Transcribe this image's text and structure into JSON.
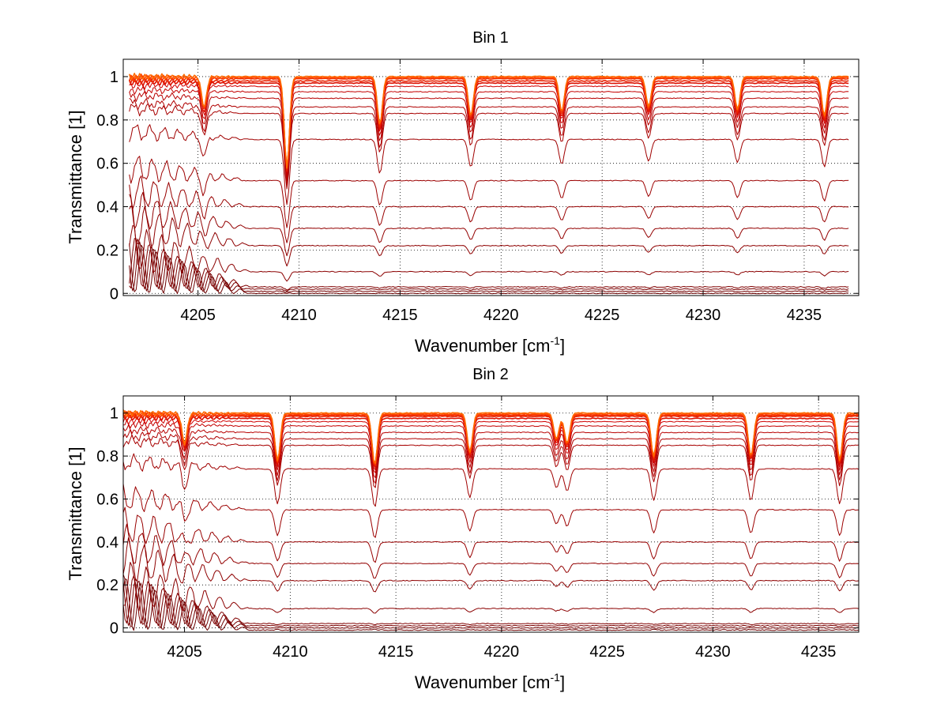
{
  "chart_data": [
    {
      "type": "line",
      "title": "Bin 1",
      "xlabel": "Wavenumber [cm",
      "xlabel_sup": "-1",
      "xlabel_end": "]",
      "ylabel": "Transmittance [1]",
      "xlim": [
        4201.3,
        4237.7
      ],
      "ylim": [
        -0.01,
        1.08
      ],
      "xticks": [
        4205,
        4210,
        4215,
        4220,
        4225,
        4230,
        4235
      ],
      "yticks": [
        0,
        0.2,
        0.4,
        0.6,
        0.8,
        1
      ],
      "ytick_labels": [
        "0",
        "0.2",
        "0.4",
        "0.6",
        "0.8",
        "1"
      ],
      "grid": true,
      "x_start": 4201.6,
      "x_end": 4237.2,
      "absorption_lines": [
        {
          "x": 4205.3,
          "rel_depth": 0.14
        },
        {
          "x": 4209.4,
          "rel_depth": 0.42
        },
        {
          "x": 4214.0,
          "rel_depth": 0.22
        },
        {
          "x": 4218.5,
          "rel_depth": 0.18
        },
        {
          "x": 4223.0,
          "rel_depth": 0.16
        },
        {
          "x": 4227.3,
          "rel_depth": 0.14
        },
        {
          "x": 4231.7,
          "rel_depth": 0.15
        },
        {
          "x": 4236.0,
          "rel_depth": 0.18
        }
      ],
      "series_baselines": [
        0.0,
        0.01,
        0.02,
        0.03,
        0.1,
        0.22,
        0.3,
        0.4,
        0.52,
        0.71,
        0.83,
        0.86,
        0.9,
        0.93,
        0.955,
        0.97,
        0.98,
        0.99,
        0.995,
        1.0
      ],
      "series_colors": [
        "#6b0000",
        "#720000",
        "#7a0000",
        "#800000",
        "#8b0000",
        "#8e0000",
        "#930000",
        "#980000",
        "#9c0000",
        "#a00000",
        "#a80000",
        "#b00000",
        "#b80000",
        "#c40000",
        "#d00000",
        "#dc1000",
        "#e82000",
        "#f03000",
        "#ff4000",
        "#ff6a00"
      ]
    },
    {
      "type": "line",
      "title": "Bin 2",
      "xlabel": "Wavenumber [cm",
      "xlabel_sup": "-1",
      "xlabel_end": "]",
      "ylabel": "Transmittance [1]",
      "xlim": [
        4202.1,
        4236.9
      ],
      "ylim": [
        -0.02,
        1.08
      ],
      "xticks": [
        4205,
        4210,
        4215,
        4220,
        4225,
        4230,
        4235
      ],
      "yticks": [
        0,
        0.2,
        0.4,
        0.6,
        0.8,
        1
      ],
      "ytick_labels": [
        "0",
        "0.2",
        "0.4",
        "0.6",
        "0.8",
        "1"
      ],
      "grid": true,
      "x_start": 4202.1,
      "x_end": 4236.9,
      "absorption_lines": [
        {
          "x": 4205.0,
          "rel_depth": 0.14
        },
        {
          "x": 4209.4,
          "rel_depth": 0.22
        },
        {
          "x": 4214.0,
          "rel_depth": 0.24
        },
        {
          "x": 4218.5,
          "rel_depth": 0.18
        },
        {
          "x": 4222.6,
          "rel_depth": 0.12
        },
        {
          "x": 4223.1,
          "rel_depth": 0.14
        },
        {
          "x": 4227.2,
          "rel_depth": 0.2
        },
        {
          "x": 4231.8,
          "rel_depth": 0.2
        },
        {
          "x": 4236.0,
          "rel_depth": 0.22
        }
      ],
      "series_baselines": [
        -0.01,
        0.0,
        0.01,
        0.02,
        0.09,
        0.22,
        0.3,
        0.4,
        0.55,
        0.74,
        0.85,
        0.88,
        0.91,
        0.94,
        0.96,
        0.975,
        0.985,
        0.99,
        0.995,
        1.0
      ],
      "series_colors": [
        "#6b0000",
        "#720000",
        "#7a0000",
        "#800000",
        "#8b0000",
        "#8e0000",
        "#930000",
        "#980000",
        "#9c0000",
        "#a00000",
        "#a80000",
        "#b00000",
        "#b80000",
        "#c40000",
        "#d00000",
        "#dc1000",
        "#e82000",
        "#f03000",
        "#ff4000",
        "#ff6a00"
      ]
    }
  ]
}
